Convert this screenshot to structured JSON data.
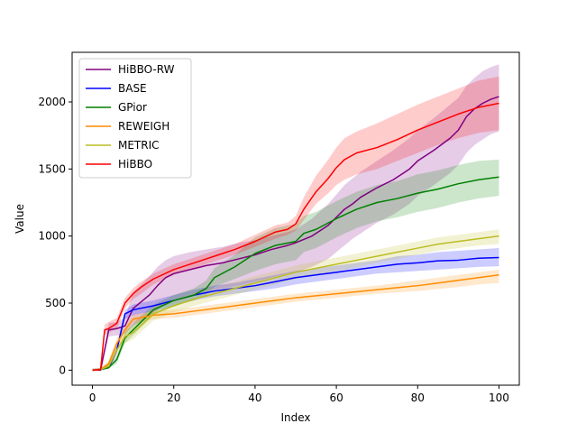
{
  "chart_data": {
    "type": "line",
    "title": "",
    "xlabel": "Index",
    "ylabel": "Value",
    "xlim": [
      -5,
      105
    ],
    "ylim": [
      -112,
      2370
    ],
    "xticks": [
      0,
      20,
      40,
      60,
      80,
      100
    ],
    "yticks": [
      0,
      500,
      1000,
      1500,
      2000
    ],
    "grid": false,
    "legend_location": "upper-left",
    "series": [
      {
        "name": "HiBBO-RW",
        "color": "#800080",
        "x": [
          0,
          2,
          4,
          6,
          8,
          10,
          12,
          14,
          16,
          18,
          20,
          24,
          28,
          32,
          36,
          40,
          44,
          48,
          50,
          54,
          58,
          60,
          62,
          64,
          66,
          70,
          74,
          78,
          80,
          84,
          88,
          90,
          92,
          94,
          96,
          98,
          100
        ],
        "mean": [
          0,
          0,
          300,
          310,
          330,
          460,
          510,
          560,
          630,
          690,
          720,
          750,
          780,
          800,
          830,
          860,
          900,
          930,
          950,
          1000,
          1080,
          1140,
          1200,
          1240,
          1290,
          1360,
          1420,
          1500,
          1560,
          1640,
          1730,
          1790,
          1890,
          1950,
          1990,
          2020,
          2040
        ],
        "lower": [
          0,
          0,
          250,
          260,
          270,
          330,
          360,
          400,
          450,
          500,
          530,
          560,
          590,
          610,
          630,
          660,
          690,
          720,
          730,
          770,
          830,
          880,
          930,
          980,
          1020,
          1100,
          1160,
          1240,
          1300,
          1380,
          1470,
          1530,
          1620,
          1680,
          1720,
          1760,
          1780
        ],
        "upper": [
          10,
          10,
          350,
          360,
          390,
          580,
          640,
          700,
          770,
          820,
          850,
          880,
          900,
          920,
          950,
          970,
          1000,
          1030,
          1050,
          1130,
          1240,
          1310,
          1380,
          1430,
          1480,
          1560,
          1640,
          1730,
          1790,
          1880,
          1980,
          2030,
          2120,
          2180,
          2230,
          2260,
          2280
        ]
      },
      {
        "name": "BASE",
        "color": "#0000ff",
        "x": [
          0,
          2,
          4,
          6,
          8,
          10,
          15,
          20,
          25,
          30,
          35,
          40,
          45,
          50,
          55,
          60,
          65,
          70,
          75,
          80,
          85,
          90,
          95,
          100
        ],
        "mean": [
          0,
          5,
          20,
          150,
          420,
          450,
          480,
          520,
          560,
          590,
          610,
          630,
          660,
          690,
          710,
          730,
          750,
          770,
          790,
          800,
          815,
          820,
          835,
          840
        ],
        "lower": [
          0,
          0,
          10,
          120,
          380,
          410,
          440,
          480,
          520,
          550,
          570,
          590,
          610,
          640,
          660,
          680,
          700,
          720,
          730,
          740,
          750,
          760,
          770,
          775
        ],
        "upper": [
          10,
          15,
          40,
          180,
          450,
          490,
          520,
          560,
          600,
          630,
          650,
          680,
          710,
          740,
          760,
          780,
          800,
          820,
          850,
          860,
          880,
          890,
          900,
          910
        ]
      },
      {
        "name": "GPior",
        "color": "#008000",
        "x": [
          0,
          2,
          4,
          6,
          8,
          10,
          15,
          20,
          25,
          28,
          30,
          35,
          40,
          45,
          50,
          52,
          55,
          60,
          65,
          70,
          75,
          80,
          85,
          90,
          95,
          100
        ],
        "mean": [
          0,
          5,
          20,
          80,
          240,
          300,
          450,
          520,
          560,
          610,
          690,
          770,
          870,
          930,
          960,
          1020,
          1050,
          1130,
          1200,
          1250,
          1280,
          1320,
          1350,
          1390,
          1420,
          1440
        ],
        "lower": [
          0,
          0,
          10,
          50,
          200,
          260,
          410,
          480,
          520,
          560,
          620,
          680,
          740,
          790,
          820,
          880,
          910,
          990,
          1060,
          1110,
          1140,
          1180,
          1210,
          1250,
          1280,
          1300
        ],
        "upper": [
          10,
          15,
          40,
          110,
          280,
          350,
          490,
          560,
          610,
          670,
          760,
          860,
          990,
          1060,
          1090,
          1150,
          1180,
          1260,
          1330,
          1380,
          1410,
          1460,
          1490,
          1530,
          1560,
          1570
        ]
      },
      {
        "name": "REWEIGH",
        "color": "#ff8c00",
        "x": [
          0,
          2,
          4,
          6,
          8,
          10,
          15,
          20,
          25,
          30,
          35,
          40,
          45,
          50,
          55,
          60,
          65,
          70,
          75,
          80,
          85,
          90,
          95,
          100
        ],
        "mean": [
          0,
          5,
          50,
          200,
          300,
          380,
          410,
          420,
          440,
          460,
          480,
          500,
          520,
          540,
          555,
          570,
          585,
          600,
          615,
          630,
          650,
          670,
          690,
          710
        ],
        "lower": [
          0,
          0,
          30,
          160,
          260,
          350,
          380,
          390,
          410,
          430,
          450,
          470,
          490,
          510,
          525,
          540,
          555,
          570,
          580,
          590,
          605,
          620,
          640,
          650
        ],
        "upper": [
          10,
          15,
          70,
          240,
          340,
          410,
          440,
          450,
          470,
          490,
          510,
          530,
          550,
          570,
          585,
          600,
          615,
          630,
          650,
          670,
          690,
          710,
          730,
          750
        ]
      },
      {
        "name": "METRIC",
        "color": "#bcbd22",
        "x": [
          0,
          2,
          4,
          6,
          8,
          10,
          15,
          20,
          25,
          30,
          35,
          40,
          45,
          50,
          55,
          60,
          65,
          70,
          75,
          80,
          85,
          90,
          95,
          100
        ],
        "mean": [
          0,
          5,
          30,
          150,
          250,
          280,
          420,
          480,
          530,
          570,
          610,
          650,
          690,
          730,
          760,
          790,
          820,
          850,
          880,
          910,
          940,
          960,
          980,
          1000
        ],
        "lower": [
          0,
          0,
          10,
          110,
          200,
          230,
          370,
          430,
          480,
          520,
          560,
          600,
          640,
          680,
          710,
          740,
          770,
          800,
          830,
          860,
          890,
          910,
          930,
          940
        ],
        "upper": [
          10,
          15,
          50,
          190,
          300,
          330,
          470,
          530,
          580,
          620,
          660,
          700,
          740,
          780,
          810,
          840,
          870,
          900,
          930,
          960,
          990,
          1010,
          1030,
          1050
        ]
      },
      {
        "name": "HiBBO",
        "color": "#ff0000",
        "x": [
          0,
          2,
          3,
          4,
          6,
          8,
          10,
          12,
          15,
          20,
          25,
          30,
          35,
          40,
          45,
          48,
          50,
          52,
          55,
          58,
          60,
          62,
          65,
          70,
          75,
          80,
          85,
          90,
          95,
          100
        ],
        "mean": [
          0,
          5,
          300,
          310,
          350,
          500,
          570,
          620,
          680,
          750,
          800,
          850,
          900,
          960,
          1030,
          1050,
          1090,
          1200,
          1330,
          1430,
          1510,
          1570,
          1620,
          1660,
          1720,
          1790,
          1850,
          1910,
          1960,
          1990
        ],
        "lower": [
          0,
          0,
          260,
          280,
          310,
          460,
          530,
          570,
          640,
          710,
          760,
          810,
          860,
          920,
          980,
          1010,
          1040,
          1120,
          1240,
          1320,
          1380,
          1420,
          1460,
          1500,
          1560,
          1620,
          1680,
          1730,
          1770,
          1790
        ],
        "upper": [
          10,
          15,
          340,
          360,
          390,
          540,
          610,
          660,
          720,
          790,
          840,
          890,
          940,
          1010,
          1080,
          1100,
          1150,
          1290,
          1450,
          1570,
          1660,
          1730,
          1780,
          1840,
          1910,
          1980,
          2040,
          2100,
          2160,
          2190
        ]
      }
    ]
  }
}
